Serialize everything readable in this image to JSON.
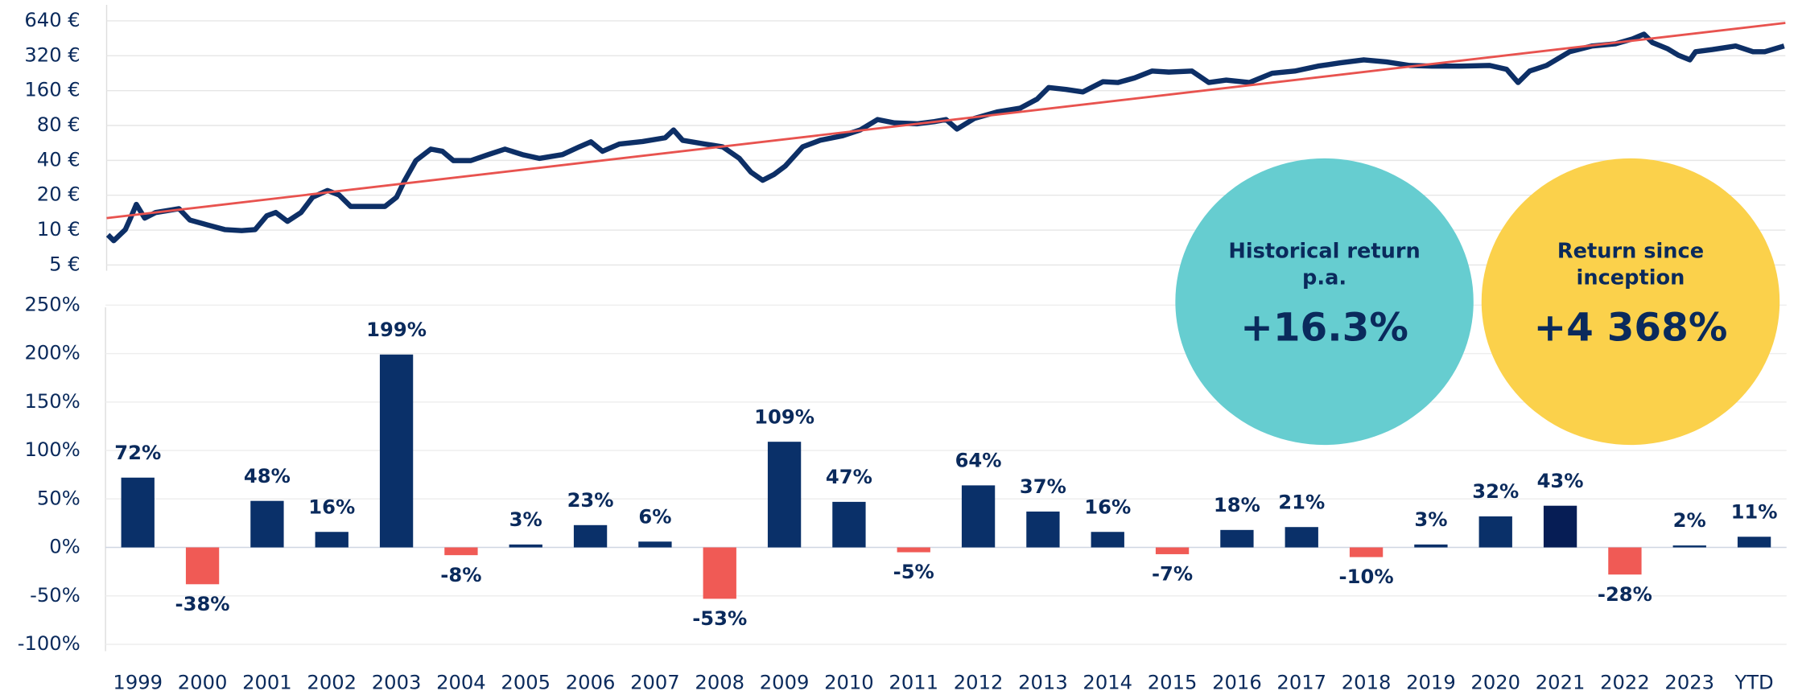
{
  "chart_data": [
    {
      "type": "line",
      "log_scale": true,
      "grid": true,
      "ylim": [
        5,
        640
      ],
      "yticks": [
        {
          "value": 5,
          "label": "5 €"
        },
        {
          "value": 10,
          "label": "10 €"
        },
        {
          "value": 20,
          "label": "20 €"
        },
        {
          "value": 40,
          "label": "40 €"
        },
        {
          "value": 80,
          "label": "80 €"
        },
        {
          "value": 160,
          "label": "160 €"
        },
        {
          "value": 320,
          "label": "320 €"
        },
        {
          "value": 640,
          "label": "640 €"
        }
      ],
      "xlim": [
        1999,
        2025
      ],
      "series": [
        {
          "color": "#0d2f66",
          "x": [
            1999.02,
            1999.11,
            1999.29,
            1999.37,
            1999.46,
            1999.59,
            1999.76,
            1999.99,
            2000.12,
            2000.29,
            2000.56,
            2000.83,
            2001.09,
            2001.3,
            2001.48,
            2001.62,
            2001.8,
            2002.01,
            2002.19,
            2002.42,
            2002.6,
            2002.78,
            2003.04,
            2003.31,
            2003.49,
            2003.61,
            2003.79,
            2004.02,
            2004.2,
            2004.37,
            2004.64,
            2004.91,
            2005.17,
            2005.44,
            2005.7,
            2006.06,
            2006.32,
            2006.5,
            2006.68,
            2006.94,
            2007.3,
            2007.65,
            2007.78,
            2007.92,
            2008.27,
            2008.54,
            2008.8,
            2008.98,
            2009.16,
            2009.34,
            2009.51,
            2009.78,
            2010.05,
            2010.4,
            2010.67,
            2010.94,
            2011.2,
            2011.55,
            2011.82,
            2012.0,
            2012.17,
            2012.44,
            2012.79,
            2013.15,
            2013.41,
            2013.59,
            2013.86,
            2014.12,
            2014.43,
            2014.66,
            2014.92,
            2015.19,
            2015.45,
            2015.81,
            2016.07,
            2016.34,
            2016.7,
            2017.05,
            2017.4,
            2017.76,
            2018.11,
            2018.47,
            2018.82,
            2019.18,
            2019.53,
            2019.98,
            2020.42,
            2020.68,
            2020.86,
            2021.04,
            2021.3,
            2021.66,
            2022.01,
            2022.37,
            2022.63,
            2022.81,
            2022.94,
            2023.17,
            2023.34,
            2023.52,
            2023.61,
            2023.87,
            2024.23,
            2024.5,
            2024.68,
            2024.98
          ],
          "values": [
            9.1,
            8.1,
            10.1,
            12.7,
            16.7,
            12.7,
            14.2,
            14.9,
            15.3,
            12.2,
            11.1,
            10.1,
            9.9,
            10.1,
            13.3,
            14.2,
            11.9,
            14.2,
            19.2,
            22.0,
            20.1,
            16.0,
            16.0,
            16.0,
            19.2,
            26.5,
            39.8,
            50.0,
            47.9,
            39.8,
            39.8,
            44.8,
            50.0,
            44.8,
            41.6,
            44.8,
            52.3,
            57.9,
            47.9,
            55.3,
            58.1,
            62.7,
            73.1,
            59.6,
            55.3,
            52.3,
            41.6,
            31.6,
            26.9,
            30.3,
            35.7,
            52.3,
            59.6,
            65.3,
            73.1,
            90.0,
            84.3,
            82.8,
            86.4,
            90.0,
            74.5,
            92.1,
            104.7,
            113,
            135,
            170,
            164,
            156,
            191,
            188,
            206,
            236,
            231,
            236,
            188,
            197,
            188,
            226,
            236,
            260,
            278,
            295,
            283,
            264,
            260,
            260,
            264,
            245,
            188,
            236,
            264,
            347,
            389,
            406,
            447,
            491,
            416,
            369,
            324,
            295,
            347,
            362,
            389,
            347,
            347,
            389
          ]
        },
        {
          "color": "#e8534f",
          "x": [
            1999,
            2025
          ],
          "values": [
            12.7,
            614
          ]
        }
      ]
    },
    {
      "type": "bar",
      "grid": true,
      "categories": [
        "1999",
        "2000",
        "2001",
        "2002",
        "2003",
        "2004",
        "2005",
        "2006",
        "2007",
        "2008",
        "2009",
        "2010",
        "2011",
        "2012",
        "2013",
        "2014",
        "2015",
        "2016",
        "2017",
        "2018",
        "2019",
        "2020",
        "2021",
        "2022",
        "2023",
        "YTD"
      ],
      "values": [
        72,
        -38,
        48,
        16,
        199,
        -8,
        3,
        23,
        6,
        -53,
        109,
        47,
        -5,
        64,
        37,
        16,
        -7,
        18,
        21,
        -10,
        3,
        32,
        43,
        -28,
        2,
        11
      ],
      "value_labels": [
        "72%",
        "-38%",
        "48%",
        "16%",
        "199%",
        "-8%",
        "3%",
        "23%",
        "6%",
        "-53%",
        "109%",
        "47%",
        "-5%",
        "64%",
        "37%",
        "16%",
        "-7%",
        "18%",
        "21%",
        "-10%",
        "3%",
        "32%",
        "43%",
        "-28%",
        "2%",
        "11%"
      ],
      "colors": [
        "#0a3069",
        "#f05a55",
        "#0a3069",
        "#0a3069",
        "#0a3069",
        "#f05a55",
        "#0a3069",
        "#0a3069",
        "#0a3069",
        "#f05a55",
        "#0a3069",
        "#0a3069",
        "#f05a55",
        "#0a3069",
        "#0a3069",
        "#0a3069",
        "#f05a55",
        "#0a3069",
        "#0a3069",
        "#f05a55",
        "#0a3069",
        "#0a3069",
        "#061d55",
        "#f05a55",
        "#0a3069",
        "#0a3069"
      ],
      "ylim": [
        -100,
        250
      ],
      "yticks": [
        {
          "value": -100,
          "label": "-100%"
        },
        {
          "value": -50,
          "label": "-50%"
        },
        {
          "value": 0,
          "label": "0%"
        },
        {
          "value": 50,
          "label": "50%"
        },
        {
          "value": 100,
          "label": "100%"
        },
        {
          "value": 150,
          "label": "150%"
        },
        {
          "value": 200,
          "label": "200%"
        },
        {
          "value": 250,
          "label": "250%"
        }
      ]
    }
  ],
  "callouts": [
    {
      "heading": [
        "Historical return",
        "p.a."
      ],
      "value": "+16.3%",
      "color": "#66cdd0"
    },
    {
      "heading": [
        "Return since",
        "inception"
      ],
      "value": "+4 368%",
      "color": "#fbd14b"
    }
  ]
}
